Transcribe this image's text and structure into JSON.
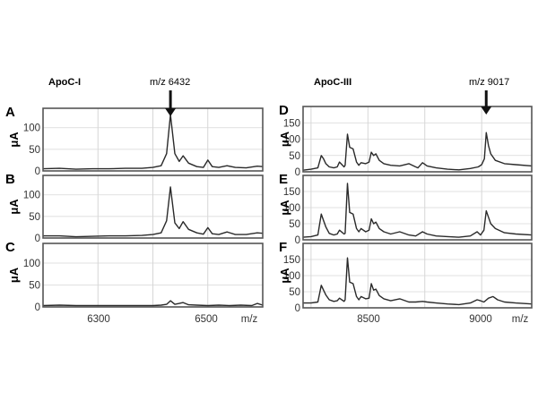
{
  "chart_data": [
    {
      "type": "line",
      "group": "ApoC-I",
      "title": "ApoC-I",
      "annotation": "m/z 6432",
      "annotation_x": 6432,
      "xlabel": "m/z",
      "ylabel": "μA",
      "xlim": [
        6200,
        6600
      ],
      "ylim": [
        0,
        145
      ],
      "xticks": [
        6300,
        6500
      ],
      "xgrid": [
        6300,
        6400,
        6500
      ],
      "yticks": [
        0,
        50,
        100
      ],
      "panels": [
        {
          "label": "A",
          "x": [
            6200,
            6230,
            6260,
            6290,
            6320,
            6350,
            6380,
            6400,
            6415,
            6425,
            6432,
            6440,
            6448,
            6455,
            6465,
            6480,
            6492,
            6500,
            6508,
            6520,
            6535,
            6550,
            6570,
            6590,
            6600
          ],
          "y": [
            5,
            6,
            4,
            5,
            5,
            6,
            6,
            8,
            12,
            40,
            130,
            40,
            22,
            35,
            18,
            10,
            8,
            25,
            10,
            8,
            12,
            8,
            7,
            11,
            10
          ]
        },
        {
          "label": "B",
          "x": [
            6200,
            6230,
            6260,
            6290,
            6320,
            6350,
            6380,
            6400,
            6415,
            6425,
            6432,
            6440,
            6448,
            6455,
            6465,
            6480,
            6492,
            6500,
            6508,
            6520,
            6535,
            6550,
            6570,
            6590,
            6600
          ],
          "y": [
            5,
            5,
            3,
            4,
            5,
            5,
            6,
            8,
            12,
            40,
            118,
            35,
            22,
            38,
            20,
            12,
            9,
            24,
            10,
            8,
            14,
            8,
            8,
            12,
            11
          ]
        },
        {
          "label": "C",
          "x": [
            6200,
            6230,
            6260,
            6290,
            6320,
            6350,
            6380,
            6400,
            6415,
            6425,
            6432,
            6440,
            6448,
            6455,
            6465,
            6480,
            6500,
            6520,
            6540,
            6560,
            6580,
            6590,
            6600
          ],
          "y": [
            3,
            4,
            3,
            3,
            3,
            3,
            3,
            3,
            4,
            6,
            14,
            6,
            8,
            10,
            5,
            4,
            3,
            4,
            3,
            4,
            3,
            8,
            4
          ]
        }
      ]
    },
    {
      "type": "line",
      "group": "ApoC-III",
      "title": "ApoC-III",
      "annotation": "m/z 9017",
      "annotation_x": 9020,
      "xlabel": "m/z",
      "ylabel": "μA",
      "xlim": [
        8215,
        9220
      ],
      "ylim": [
        0,
        200
      ],
      "xticks": [
        8500,
        9000
      ],
      "xgrid": [
        8250,
        8500,
        8750,
        9000
      ],
      "yticks": [
        0,
        50,
        100,
        150
      ],
      "panels": [
        {
          "label": "D",
          "x": [
            8215,
            8250,
            8280,
            8295,
            8305,
            8315,
            8330,
            8350,
            8365,
            8375,
            8395,
            8400,
            8410,
            8420,
            8435,
            8450,
            8460,
            8470,
            8490,
            8505,
            8515,
            8525,
            8535,
            8550,
            8570,
            8600,
            8640,
            8680,
            8710,
            8720,
            8740,
            8760,
            8800,
            8850,
            8900,
            8950,
            8985,
            9000,
            9012,
            9020,
            9030,
            9040,
            9060,
            9100,
            9150,
            9220
          ],
          "y": [
            5,
            8,
            12,
            50,
            40,
            25,
            15,
            12,
            15,
            30,
            15,
            20,
            115,
            75,
            70,
            30,
            20,
            28,
            25,
            30,
            60,
            50,
            55,
            35,
            25,
            20,
            18,
            25,
            15,
            12,
            28,
            18,
            12,
            8,
            6,
            10,
            15,
            22,
            40,
            120,
            80,
            55,
            35,
            25,
            22,
            18
          ]
        },
        {
          "label": "E",
          "x": [
            8215,
            8250,
            8280,
            8295,
            8305,
            8315,
            8330,
            8350,
            8365,
            8375,
            8395,
            8400,
            8410,
            8420,
            8435,
            8450,
            8460,
            8470,
            8490,
            8505,
            8515,
            8525,
            8535,
            8550,
            8570,
            8600,
            8640,
            8680,
            8710,
            8740,
            8760,
            8800,
            8850,
            8900,
            8950,
            8980,
            8995,
            9010,
            9020,
            9030,
            9040,
            9060,
            9100,
            9150,
            9220
          ],
          "y": [
            8,
            10,
            15,
            80,
            60,
            40,
            20,
            15,
            18,
            30,
            18,
            20,
            175,
            85,
            80,
            35,
            25,
            35,
            25,
            30,
            65,
            50,
            55,
            35,
            25,
            18,
            25,
            15,
            12,
            25,
            18,
            12,
            10,
            8,
            12,
            25,
            15,
            30,
            90,
            70,
            50,
            35,
            22,
            18,
            15
          ]
        },
        {
          "label": "F",
          "x": [
            8215,
            8250,
            8280,
            8295,
            8305,
            8315,
            8330,
            8350,
            8365,
            8375,
            8395,
            8400,
            8410,
            8420,
            8435,
            8450,
            8460,
            8470,
            8490,
            8505,
            8515,
            8525,
            8535,
            8550,
            8570,
            8600,
            8640,
            8680,
            8710,
            8740,
            8760,
            8800,
            8850,
            8900,
            8950,
            8980,
            8995,
            9010,
            9030,
            9050,
            9070,
            9100,
            9150,
            9220
          ],
          "y": [
            15,
            15,
            18,
            70,
            55,
            40,
            25,
            20,
            22,
            30,
            20,
            25,
            155,
            80,
            75,
            35,
            25,
            35,
            28,
            30,
            75,
            55,
            58,
            38,
            28,
            22,
            28,
            18,
            18,
            20,
            18,
            15,
            12,
            10,
            15,
            25,
            22,
            18,
            30,
            35,
            25,
            18,
            15,
            12
          ]
        }
      ]
    }
  ],
  "figure": {
    "left_title": "ApoC-I",
    "left_annotation": "m/z 6432",
    "right_title": "ApoC-III",
    "right_annotation": "m/z 9017",
    "panel_labels": [
      "A",
      "B",
      "C",
      "D",
      "E",
      "F"
    ],
    "y_axis_label": "μA",
    "x_axis_label": "m/z",
    "left_xticks": [
      "6300",
      "6500"
    ],
    "right_xticks": [
      "8500",
      "9000"
    ],
    "line_color": "#2a2a2a",
    "frame_color": "#555555",
    "grid_color": "#d6d6d6"
  }
}
